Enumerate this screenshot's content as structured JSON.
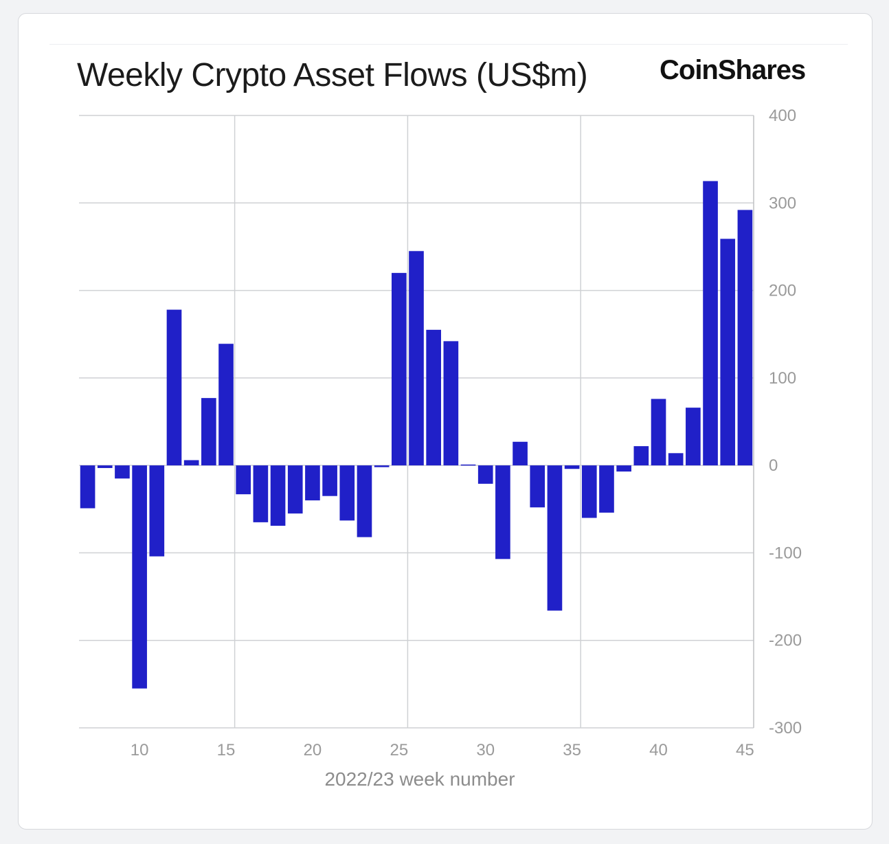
{
  "header": {
    "title": "Weekly Crypto Asset Flows (US$m)",
    "brand": "CoinShares"
  },
  "colors": {
    "bar": "#2020c8"
  },
  "chart_data": {
    "type": "bar",
    "title": "Weekly Crypto Asset Flows (US$m)",
    "xlabel": "2022/23 week number",
    "ylabel": "",
    "ylim": [
      -300,
      400
    ],
    "yticks": [
      400,
      300,
      200,
      100,
      0,
      -100,
      -200,
      -300
    ],
    "ytick_labels": [
      "400",
      "300",
      "200",
      "100",
      "0",
      "-100",
      "-200",
      "-300"
    ],
    "xlim": [
      6.5,
      45.5
    ],
    "xticks": [
      10,
      15,
      20,
      25,
      30,
      35,
      40,
      45
    ],
    "xtick_labels": [
      "10",
      "15",
      "20",
      "25",
      "30",
      "35",
      "40",
      "45"
    ],
    "vertical_gridlines_at": [
      15,
      25,
      35
    ],
    "y_axis_position": "right",
    "grid": true,
    "categories": [
      7,
      8,
      9,
      10,
      11,
      12,
      13,
      14,
      15,
      16,
      17,
      18,
      19,
      20,
      21,
      22,
      23,
      24,
      25,
      26,
      27,
      28,
      29,
      30,
      31,
      32,
      33,
      34,
      35,
      36,
      37,
      38,
      39,
      40,
      41,
      42,
      43,
      44,
      45
    ],
    "values": [
      -49,
      -3,
      -15,
      -255,
      -104,
      178,
      6,
      77,
      139,
      -33,
      -65,
      -69,
      -55,
      -40,
      -35,
      -63,
      -82,
      -2,
      220,
      245,
      155,
      142,
      1,
      -21,
      -107,
      27,
      -48,
      -166,
      -4,
      -60,
      -54,
      -7,
      22,
      76,
      14,
      66,
      325,
      259,
      292
    ]
  }
}
